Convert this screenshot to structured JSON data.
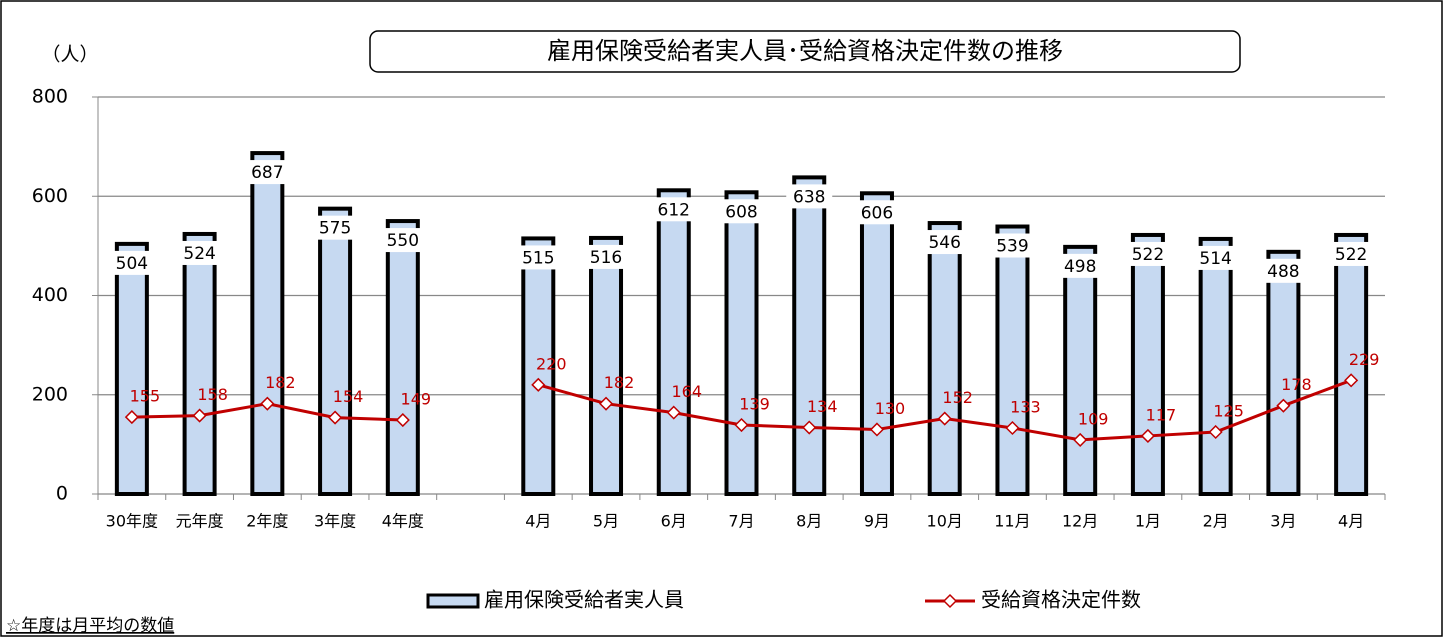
{
  "chart_data": {
    "type": "bar",
    "title": "雇用保険受給者実人員･受給資格決定件数の推移",
    "y_label": "（人）",
    "note": "☆年度は月平均の数値",
    "categories": [
      "30年度",
      "元年度",
      "2年度",
      "3年度",
      "4年度",
      null,
      "4月",
      "5月",
      "6月",
      "7月",
      "8月",
      "9月",
      "10月",
      "11月",
      "12月",
      "1月",
      "2月",
      "3月",
      "4月"
    ],
    "series": [
      {
        "name": "雇用保険受給者実人員",
        "type": "bar",
        "color": "#c6d9f1",
        "values": [
          504,
          524,
          687,
          575,
          550,
          null,
          515,
          516,
          612,
          608,
          638,
          606,
          546,
          539,
          498,
          522,
          514,
          488,
          522
        ]
      },
      {
        "name": "受給資格決定件数",
        "type": "line",
        "color": "#c00000",
        "values": [
          155,
          158,
          182,
          154,
          149,
          null,
          220,
          182,
          164,
          139,
          134,
          130,
          152,
          133,
          109,
          117,
          125,
          178,
          229
        ]
      }
    ],
    "ylim": [
      0,
      800
    ],
    "yticks": [
      0,
      200,
      400,
      600,
      800
    ],
    "grid": true
  }
}
